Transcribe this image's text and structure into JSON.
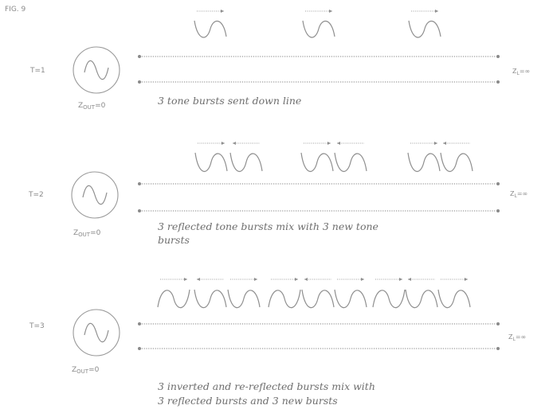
{
  "figure": {
    "label": "FIG. 9",
    "rows": [
      {
        "t_label": "T=1",
        "source_label": "Z",
        "source_sub": "OUT",
        "source_eq": "=0",
        "load_label": "Z",
        "load_sub": "L",
        "load_eq": "=∞",
        "caption_lines": [
          "3 tone bursts sent down line"
        ],
        "bursts": [
          "forward",
          "forward",
          "forward"
        ]
      },
      {
        "t_label": "T=2",
        "source_label": "Z",
        "source_sub": "OUT",
        "source_eq": "=0",
        "load_label": "Z",
        "load_sub": "L",
        "load_eq": "=∞",
        "caption_lines": [
          "3 reflected tone bursts mix with 3 new tone",
          "bursts"
        ],
        "bursts": [
          "forward",
          "reflected",
          "forward",
          "reflected",
          "forward",
          "reflected"
        ]
      },
      {
        "t_label": "T=3",
        "source_label": "Z",
        "source_sub": "OUT",
        "source_eq": "=0",
        "load_label": "Z",
        "load_sub": "L",
        "load_eq": "=∞",
        "caption_lines": [
          "3 inverted and re-reflected bursts mix with",
          "3 reflected bursts and 3 new bursts"
        ],
        "bursts": [
          "inverted",
          "reflected",
          "forward",
          "inverted",
          "reflected",
          "forward",
          "inverted",
          "reflected",
          "forward"
        ]
      }
    ]
  }
}
